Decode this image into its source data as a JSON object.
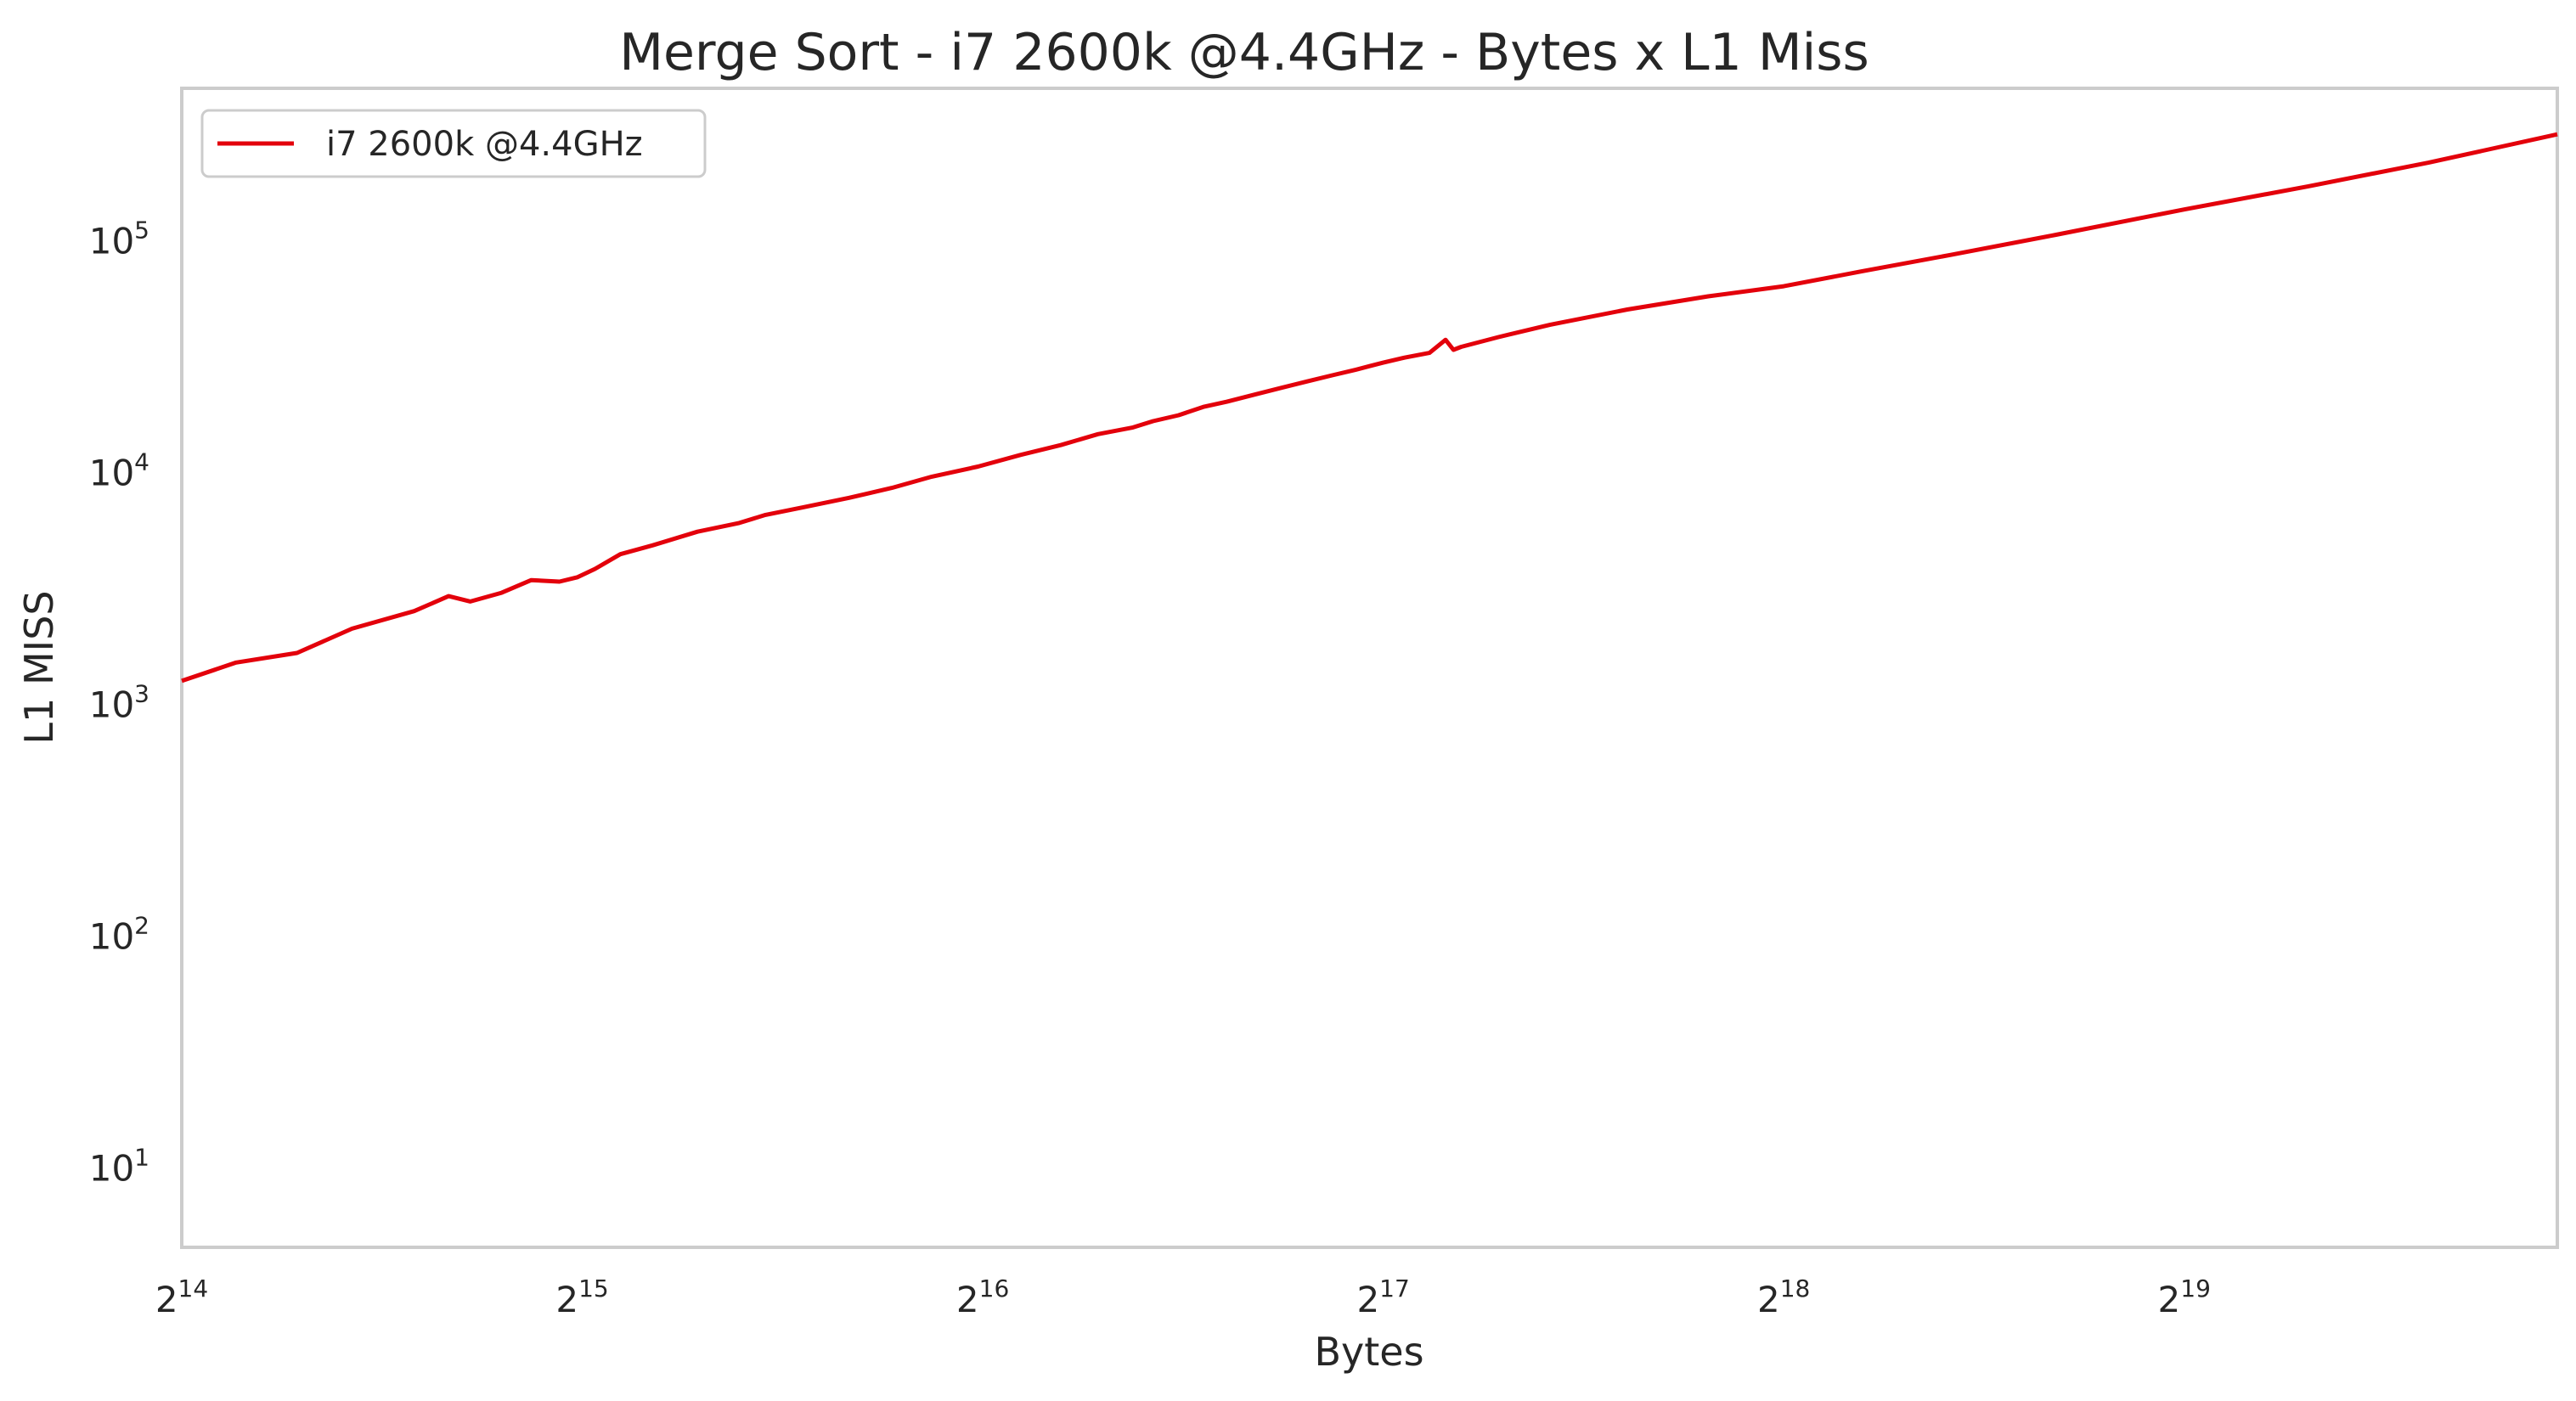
{
  "chart_data": {
    "type": "line",
    "title": "Merge Sort - i7 2600k @4.4GHz - Bytes x L1 Miss",
    "xlabel": "Bytes",
    "ylabel": "L1 MISS",
    "x_scale": "log2",
    "y_scale": "log10",
    "xlim": [
      16384,
      999999
    ],
    "ylim": [
      4.5,
      450000
    ],
    "grid": false,
    "legend_position": "top-left",
    "x_ticks": [
      {
        "value": 16384,
        "base": "2",
        "exp": "14"
      },
      {
        "value": 32768,
        "base": "2",
        "exp": "15"
      },
      {
        "value": 65536,
        "base": "2",
        "exp": "16"
      },
      {
        "value": 131072,
        "base": "2",
        "exp": "17"
      },
      {
        "value": 262144,
        "base": "2",
        "exp": "18"
      },
      {
        "value": 524288,
        "base": "2",
        "exp": "19"
      }
    ],
    "y_ticks": [
      {
        "value": 10,
        "base": "10",
        "exp": "1"
      },
      {
        "value": 100,
        "base": "10",
        "exp": "2"
      },
      {
        "value": 1000,
        "base": "10",
        "exp": "3"
      },
      {
        "value": 10000,
        "base": "10",
        "exp": "4"
      },
      {
        "value": 100000,
        "base": "10",
        "exp": "5"
      }
    ],
    "series": [
      {
        "name": "i7 2600k @4.4GHz",
        "color": "#e3000b",
        "x": [
          16384,
          18000,
          20000,
          22000,
          24500,
          26000,
          27000,
          28500,
          30000,
          31500,
          32500,
          33500,
          35000,
          37000,
          40000,
          43000,
          45000,
          48000,
          52000,
          56000,
          60000,
          65000,
          70000,
          75000,
          80000,
          85000,
          88000,
          92000,
          96000,
          100000,
          105000,
          110000,
          115000,
          120000,
          125000,
          128000,
          131072,
          136000,
          142000,
          146000,
          148000,
          150000,
          160000,
          175000,
          200000,
          230000,
          262144,
          300000,
          350000,
          420000,
          524288,
          650000,
          800000,
          999999
        ],
        "y": [
          1250,
          1500,
          1650,
          2100,
          2500,
          2900,
          2750,
          3000,
          3400,
          3350,
          3500,
          3800,
          4400,
          4800,
          5500,
          6000,
          6500,
          7000,
          7700,
          8500,
          9500,
          10500,
          11800,
          13000,
          14500,
          15500,
          16500,
          17500,
          19000,
          20000,
          21500,
          23000,
          24500,
          26000,
          27500,
          28500,
          29500,
          31000,
          32500,
          37000,
          33500,
          34500,
          38000,
          43000,
          50000,
          57000,
          63000,
          73000,
          86000,
          105000,
          135000,
          170000,
          215000,
          285000
        ]
      }
    ]
  }
}
